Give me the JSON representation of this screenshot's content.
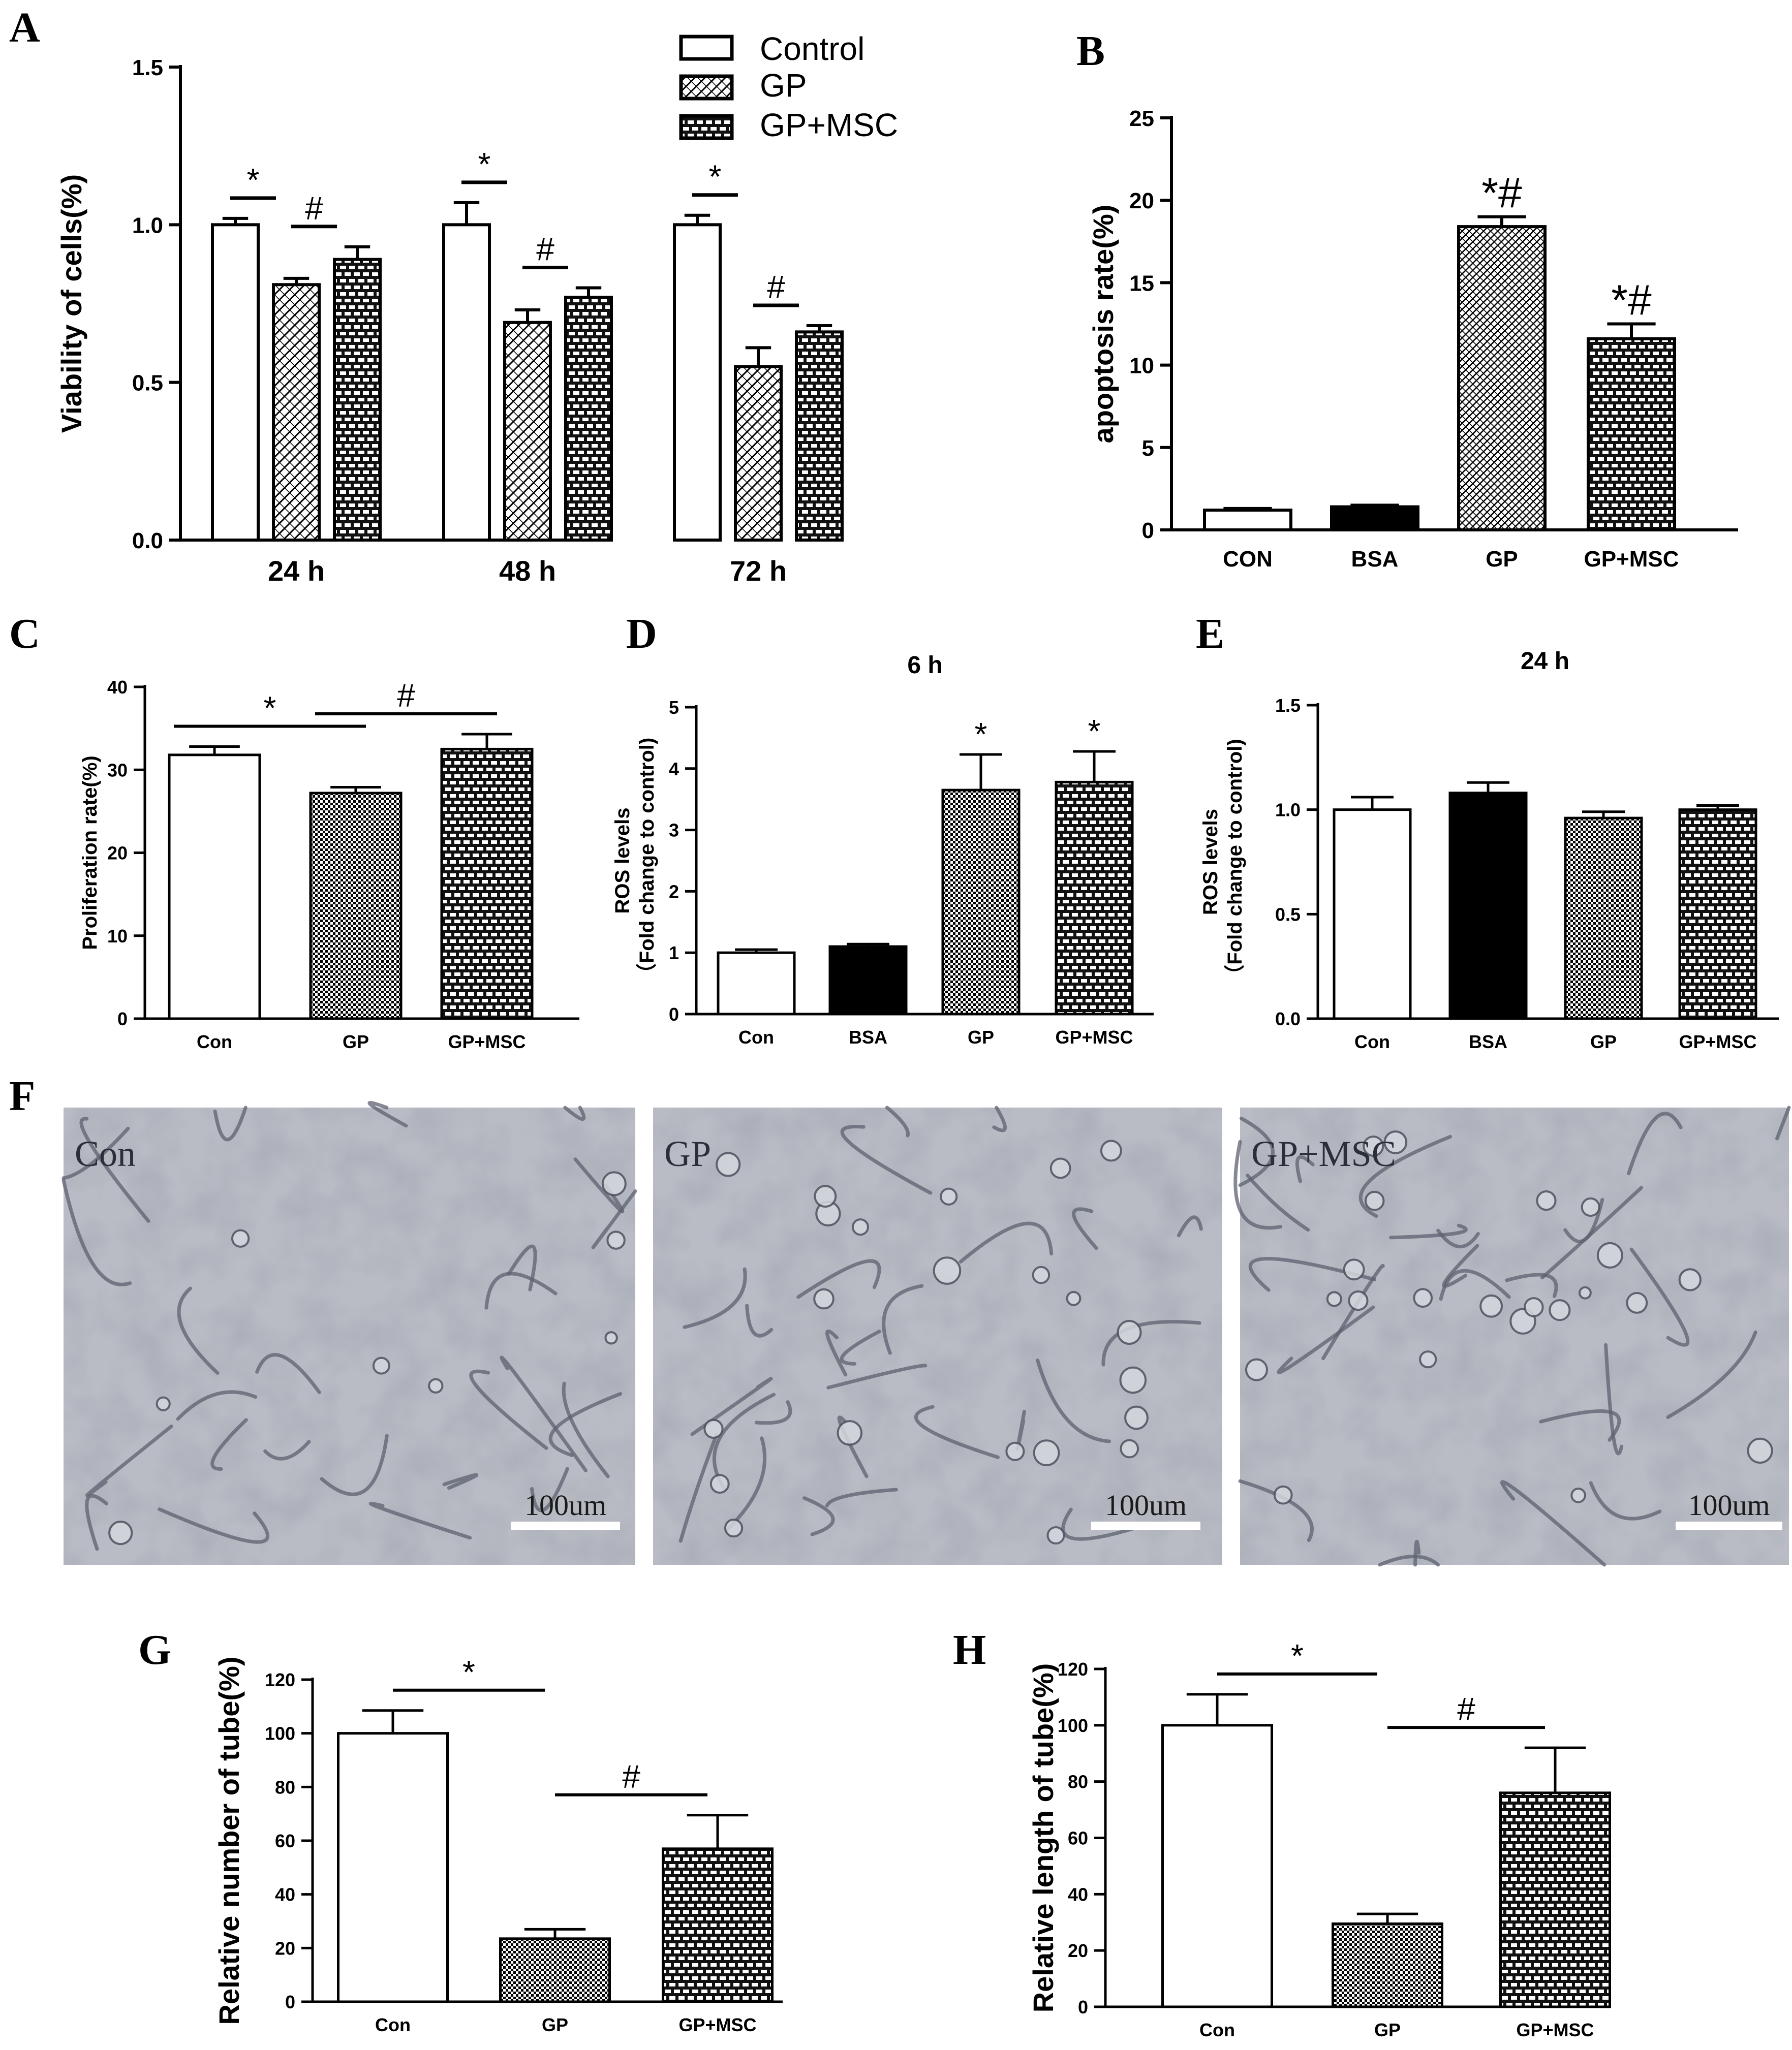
{
  "figure": {
    "panels": {
      "A": {
        "letter": "A"
      },
      "B": {
        "letter": "B"
      },
      "C": {
        "letter": "C"
      },
      "D": {
        "letter": "D"
      },
      "E": {
        "letter": "E"
      },
      "F": {
        "letter": "F"
      },
      "G": {
        "letter": "G"
      },
      "H": {
        "letter": "H"
      }
    }
  },
  "colors": {
    "axis": "#000000",
    "bar_fill_control": "#ffffff",
    "bar_fill_solid": "#000000",
    "micrograph_bg": "#b9bcc4",
    "cell_outline": "#5d6270"
  },
  "chart_data": [
    {
      "id": "A",
      "type": "bar",
      "title": "",
      "xlabel": "",
      "ylabel": "Viability of cells(%)",
      "ylim": [
        0,
        1.5
      ],
      "yticks": [
        "0.0",
        "0.5",
        "1.0",
        "1.5"
      ],
      "categories": [
        "24 h",
        "48 h",
        "72 h"
      ],
      "series": [
        {
          "name": "Control",
          "pattern": "open",
          "values": [
            1.0,
            1.0,
            1.0
          ],
          "errors": [
            0.02,
            0.07,
            0.03
          ]
        },
        {
          "name": "GP",
          "pattern": "diag",
          "values": [
            0.81,
            0.69,
            0.55
          ],
          "errors": [
            0.02,
            0.04,
            0.06
          ]
        },
        {
          "name": "GP+MSC",
          "pattern": "brick-dark",
          "values": [
            0.89,
            0.77,
            0.66
          ],
          "errors": [
            0.04,
            0.03,
            0.02
          ]
        }
      ],
      "legend": {
        "position": "top-right",
        "labels": [
          "Control",
          "GP",
          "GP+MSC"
        ]
      },
      "annotations": [
        {
          "text": "*",
          "group": 0,
          "from": 0,
          "to": 1
        },
        {
          "text": "#",
          "group": 0,
          "from": 1,
          "to": 2
        },
        {
          "text": "*",
          "group": 1,
          "from": 0,
          "to": 1
        },
        {
          "text": "#",
          "group": 1,
          "from": 1,
          "to": 2
        },
        {
          "text": "*",
          "group": 2,
          "from": 0,
          "to": 1
        },
        {
          "text": "#",
          "group": 2,
          "from": 1,
          "to": 2
        }
      ]
    },
    {
      "id": "B",
      "type": "bar",
      "title": "",
      "xlabel": "",
      "ylabel": "apoptosis rate(%)",
      "ylim": [
        0,
        25
      ],
      "yticks": [
        "0",
        "5",
        "10",
        "15",
        "20",
        "25"
      ],
      "categories": [
        "CON",
        "BSA",
        "GP",
        "GP+MSC"
      ],
      "values": [
        1.2,
        1.4,
        18.4,
        11.6
      ],
      "errors": [
        0.1,
        0.1,
        0.6,
        0.9
      ],
      "patterns": [
        "open",
        "solid",
        "diag-dense",
        "brick-dark"
      ],
      "annotations": [
        {
          "text": "*#",
          "bar": 2
        },
        {
          "text": "*#",
          "bar": 3
        }
      ]
    },
    {
      "id": "C",
      "type": "bar",
      "title": "",
      "xlabel": "",
      "ylabel": "Proliferation rate(%)",
      "ylim": [
        0,
        40
      ],
      "yticks": [
        "0",
        "10",
        "20",
        "30",
        "40"
      ],
      "categories": [
        "Con",
        "GP",
        "GP+MSC"
      ],
      "values": [
        31.8,
        27.2,
        32.5
      ],
      "errors": [
        1.0,
        0.7,
        1.8
      ],
      "patterns": [
        "open",
        "checker",
        "brick-dark"
      ],
      "annotations": [
        {
          "text": "*",
          "from": 0,
          "to": 1
        },
        {
          "text": "#",
          "from": 1,
          "to": 2
        }
      ]
    },
    {
      "id": "D",
      "type": "bar",
      "title": "6 h",
      "xlabel": "",
      "ylabel": "ROS levels",
      "ylabel2": "（Fold change to control)",
      "ylim": [
        0,
        5
      ],
      "yticks": [
        "0",
        "1",
        "2",
        "3",
        "4",
        "5"
      ],
      "categories": [
        "Con",
        "BSA",
        "GP",
        "GP+MSC"
      ],
      "values": [
        1.0,
        1.1,
        3.65,
        3.78
      ],
      "errors": [
        0.05,
        0.04,
        0.58,
        0.5
      ],
      "patterns": [
        "open",
        "solid",
        "checker",
        "brick-dark"
      ],
      "annotations": [
        {
          "text": "*",
          "bar": 2
        },
        {
          "text": "*",
          "bar": 3
        }
      ]
    },
    {
      "id": "E",
      "type": "bar",
      "title": "24 h",
      "xlabel": "",
      "ylabel": "ROS levels",
      "ylabel2": "（Fold change to control)",
      "ylim": [
        0,
        1.5
      ],
      "yticks": [
        "0.0",
        "0.5",
        "1.0",
        "1.5"
      ],
      "categories": [
        "Con",
        "BSA",
        "GP",
        "GP+MSC"
      ],
      "values": [
        1.0,
        1.08,
        0.96,
        1.0
      ],
      "errors": [
        0.06,
        0.05,
        0.03,
        0.02
      ],
      "patterns": [
        "open",
        "solid",
        "checker",
        "brick-dark"
      ],
      "annotations": []
    },
    {
      "id": "G",
      "type": "bar",
      "title": "",
      "xlabel": "",
      "ylabel": "Relative number of tube(%)",
      "ylim": [
        0,
        120
      ],
      "yticks": [
        "0",
        "20",
        "40",
        "60",
        "80",
        "100",
        "120"
      ],
      "categories": [
        "Con",
        "GP",
        "GP+MSC"
      ],
      "values": [
        100,
        23.5,
        57
      ],
      "errors": [
        8.5,
        3.5,
        12.5
      ],
      "patterns": [
        "open",
        "checker",
        "brick-dark"
      ],
      "annotations": [
        {
          "text": "*",
          "from": 0,
          "to": 1
        },
        {
          "text": "#",
          "from": 1,
          "to": 2
        }
      ]
    },
    {
      "id": "H",
      "type": "bar",
      "title": "",
      "xlabel": "",
      "ylabel": "Relative length of tube(%)",
      "ylim": [
        0,
        120
      ],
      "yticks": [
        "0",
        "20",
        "40",
        "60",
        "80",
        "100",
        "120"
      ],
      "categories": [
        "Con",
        "GP",
        "GP+MSC"
      ],
      "values": [
        100,
        29.5,
        76
      ],
      "errors": [
        11,
        3.5,
        16
      ],
      "patterns": [
        "open",
        "checker",
        "brick-dark"
      ],
      "annotations": [
        {
          "text": "*",
          "from": 0,
          "to": 1
        },
        {
          "text": "#",
          "from": 1,
          "to": 2
        }
      ]
    }
  ],
  "micrographs": [
    {
      "label": "Con",
      "scalebar": "100um"
    },
    {
      "label": "GP",
      "scalebar": "100um"
    },
    {
      "label": "GP+MSC",
      "scalebar": "100um"
    }
  ]
}
